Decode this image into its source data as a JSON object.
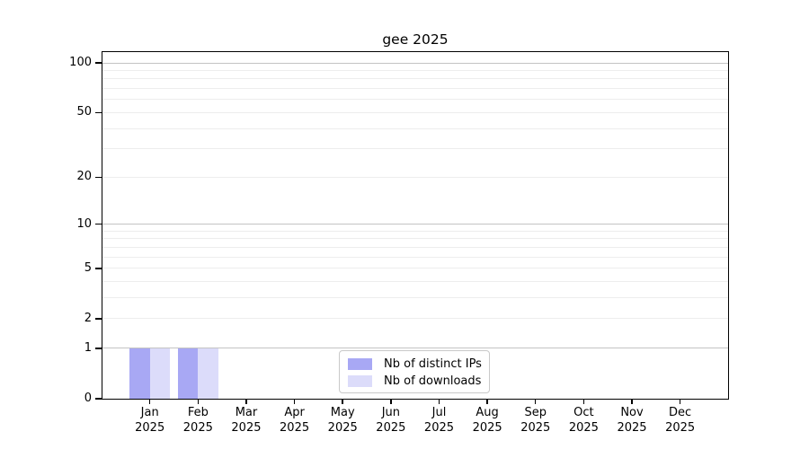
{
  "chart_data": {
    "type": "bar",
    "title": "gee 2025",
    "categories": [
      "Jan 2025",
      "Feb 2025",
      "Mar 2025",
      "Apr 2025",
      "May 2025",
      "Jun 2025",
      "Jul 2025",
      "Aug 2025",
      "Sep 2025",
      "Oct 2025",
      "Nov 2025",
      "Dec 2025"
    ],
    "x_months": [
      "Jan",
      "Feb",
      "Mar",
      "Apr",
      "May",
      "Jun",
      "Jul",
      "Aug",
      "Sep",
      "Oct",
      "Nov",
      "Dec"
    ],
    "x_year": "2025",
    "series": [
      {
        "name": "Nb of distinct IPs",
        "color": "#a8a8f4",
        "values": [
          1,
          1,
          0,
          0,
          0,
          0,
          0,
          0,
          0,
          0,
          0,
          0
        ]
      },
      {
        "name": "Nb of downloads",
        "color": "#dcdcfa",
        "values": [
          1,
          1,
          0,
          0,
          0,
          0,
          0,
          0,
          0,
          0,
          0,
          0
        ]
      }
    ],
    "y_axis": {
      "scale": "log10(1+v)",
      "ticks": [
        0,
        1,
        2,
        5,
        10,
        20,
        50,
        100
      ],
      "major_gridlines": [
        1,
        10,
        100
      ],
      "minor_gridlines": [
        2,
        3,
        4,
        5,
        6,
        7,
        8,
        9,
        20,
        30,
        40,
        50,
        60,
        70,
        80,
        90
      ],
      "ylim": [
        0,
        116
      ]
    },
    "legend_position": "bottom-center",
    "grid": true
  },
  "colors": {
    "bar_distinct_ips": "#a8a8f4",
    "bar_downloads": "#dcdcfa",
    "gridline_major": "#c3c3c3",
    "gridline_minor": "#ededed",
    "spine": "#000000",
    "legend_border": "#c9c9c9"
  }
}
